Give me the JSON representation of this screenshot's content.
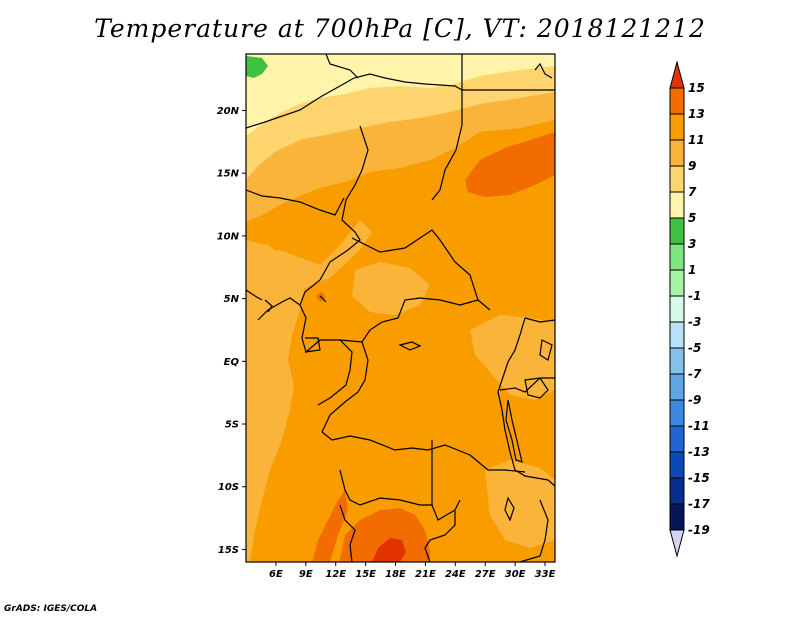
{
  "title": "Temperature at 700hPa [C], VT: 2018121212",
  "footer": "GrADS: IGES/COLA",
  "map": {
    "lon_range": [
      3,
      34
    ],
    "lat_range": [
      -16,
      24.5
    ],
    "lon_ticks": [
      "6E",
      "9E",
      "12E",
      "15E",
      "18E",
      "21E",
      "24E",
      "27E",
      "30E",
      "33E"
    ],
    "lat_ticks": [
      "20N",
      "15N",
      "10N",
      "5N",
      "EQ",
      "5S",
      "10S",
      "15S"
    ]
  },
  "colorbar": {
    "labels": [
      "15",
      "13",
      "11",
      "9",
      "7",
      "5",
      "3",
      "1",
      "-1",
      "-3",
      "-5",
      "-7",
      "-9",
      "-11",
      "-13",
      "-15",
      "-17",
      "-19"
    ],
    "colors": [
      "#e33400",
      "#f16d00",
      "#f89c00",
      "#fbb43a",
      "#fed46e",
      "#fff4a9",
      "#3fc13f",
      "#7fe77f",
      "#a6f5a6",
      "#d5fbe6",
      "#b8e0f8",
      "#84c2ee",
      "#5fa6e6",
      "#3a8ae0",
      "#2066d0",
      "#0a4ab8",
      "#062f8e",
      "#04155a",
      "#d9d3f2"
    ]
  }
}
